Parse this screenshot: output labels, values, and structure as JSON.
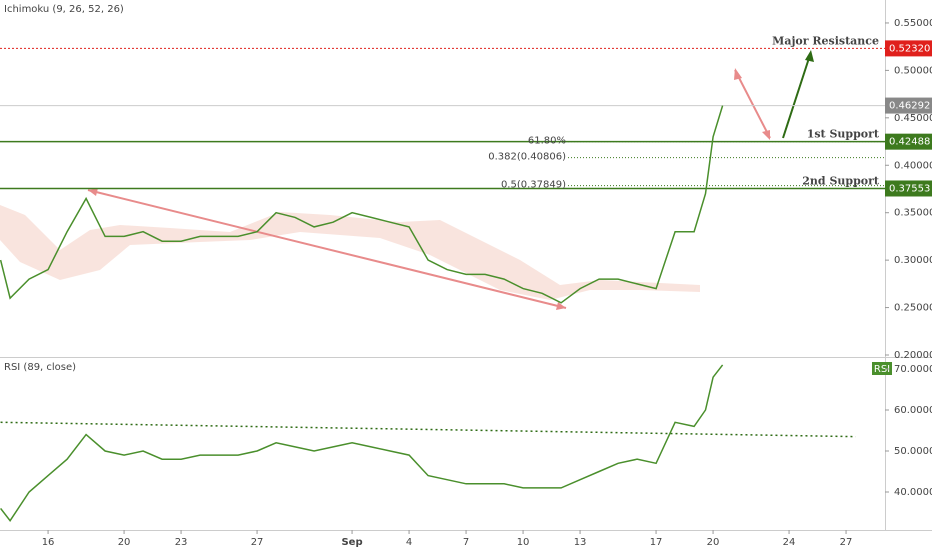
{
  "chart_data": [
    {
      "type": "line",
      "title": "Ichimoku (9, 26, 52, 26)",
      "xlim": [
        13.47,
        60.05
      ],
      "ylim": [
        0.1979,
        0.5742
      ],
      "yticks": [
        {
          "value": 0.2,
          "label": "0.20000"
        },
        {
          "value": 0.25,
          "label": "0.25000"
        },
        {
          "value": 0.3,
          "label": "0.30000"
        },
        {
          "value": 0.35,
          "label": "0.35000"
        },
        {
          "value": 0.4,
          "label": "0.40000"
        },
        {
          "value": 0.45,
          "label": "0.45000"
        },
        {
          "value": 0.5,
          "label": "0.50000"
        },
        {
          "value": 0.55,
          "label": "0.55000"
        }
      ],
      "series": [
        {
          "color": "#4a8f2c",
          "x": [
            13.5,
            14,
            15,
            16,
            17,
            18,
            19,
            20,
            21,
            22,
            23,
            24,
            25,
            26,
            27,
            28,
            29,
            30,
            31,
            32,
            33,
            34,
            35,
            36,
            37,
            38,
            39,
            40,
            41,
            42,
            43,
            44,
            45,
            46,
            47,
            48,
            49,
            50,
            50.6,
            51,
            51.5
          ],
          "values": [
            0.3,
            0.26,
            0.28,
            0.29,
            0.33,
            0.365,
            0.325,
            0.325,
            0.33,
            0.32,
            0.32,
            0.325,
            0.325,
            0.325,
            0.33,
            0.35,
            0.345,
            0.335,
            0.34,
            0.35,
            0.345,
            0.34,
            0.335,
            0.3,
            0.29,
            0.285,
            0.285,
            0.28,
            0.27,
            0.265,
            0.255,
            0.27,
            0.28,
            0.28,
            0.275,
            0.27,
            0.33,
            0.33,
            0.37,
            0.43,
            0.46292
          ]
        }
      ],
      "levels": [
        {
          "name": "Major Resistance",
          "value": 0.5232,
          "label": "0.52320",
          "color": "#e0201c"
        },
        {
          "name": "1st Support",
          "value": 0.42488,
          "label": "0.42488",
          "color": "#3d7a1e"
        },
        {
          "name": "2nd Support",
          "value": 0.37553,
          "label": "0.37553",
          "color": "#3d7a1e"
        }
      ],
      "last_price": {
        "value": 0.46292,
        "label": "0.46292",
        "color": "#888888"
      },
      "fib_levels": [
        {
          "label": "61.80%",
          "value": 0.4249
        },
        {
          "label": "0.382(0.40806)",
          "value": 0.40806
        },
        {
          "label": "0.5(0.37849)",
          "value": 0.37849
        }
      ]
    },
    {
      "type": "line",
      "title": "RSI (89, close)",
      "badge": "RSI",
      "xlim": [
        13.47,
        60.05
      ],
      "ylim": [
        30.73,
        72.68
      ],
      "yticks": [
        {
          "value": 40,
          "label": "40.0000"
        },
        {
          "value": 50,
          "label": "50.0000"
        },
        {
          "value": 60,
          "label": "60.0000"
        },
        {
          "value": 70,
          "label": "70.0000"
        }
      ],
      "xticks": [
        {
          "value": 16,
          "label": "16"
        },
        {
          "value": 20,
          "label": "20"
        },
        {
          "value": 23,
          "label": "23"
        },
        {
          "value": 27,
          "label": "27"
        },
        {
          "value": 32,
          "label": "Sep"
        },
        {
          "value": 35,
          "label": "4"
        },
        {
          "value": 38,
          "label": "7"
        },
        {
          "value": 41,
          "label": "10"
        },
        {
          "value": 44,
          "label": "13"
        },
        {
          "value": 48,
          "label": "17"
        },
        {
          "value": 51,
          "label": "20"
        },
        {
          "value": 55,
          "label": "24"
        },
        {
          "value": 58,
          "label": "27"
        }
      ],
      "series": [
        {
          "color": "#4a8f2c",
          "x": [
            13.5,
            14,
            15,
            16,
            17,
            18,
            19,
            20,
            21,
            22,
            23,
            24,
            25,
            26,
            27,
            28,
            29,
            30,
            31,
            32,
            33,
            34,
            35,
            36,
            37,
            38,
            39,
            40,
            41,
            42,
            43,
            44,
            45,
            46,
            47,
            48,
            49,
            50,
            50.6,
            51,
            51.5
          ],
          "values": [
            36,
            33,
            40,
            44,
            48,
            54,
            50,
            49,
            50,
            48,
            48,
            49,
            49,
            49,
            50,
            52,
            51,
            50,
            51,
            52,
            51,
            50,
            49,
            44,
            43,
            42,
            42,
            42,
            41,
            41,
            41,
            43,
            45,
            47,
            48,
            47,
            57,
            56,
            60,
            68,
            71
          ]
        }
      ],
      "trend": {
        "x": [
          13.5,
          58.5
        ],
        "values": [
          57,
          53.5
        ],
        "color": "#2e6b14"
      }
    }
  ]
}
